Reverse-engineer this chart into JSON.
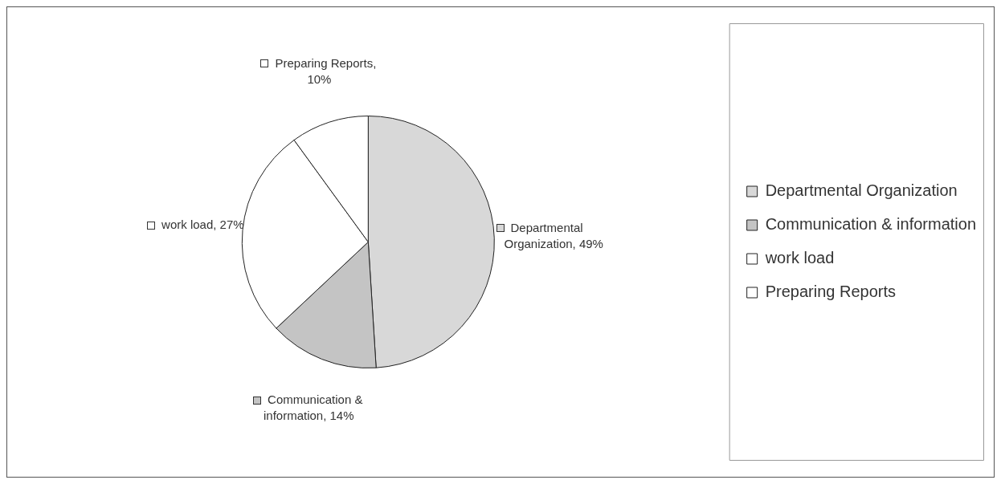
{
  "chart_data": {
    "type": "pie",
    "categories": [
      "Departmental Organization",
      "Communication & information",
      "work load",
      "Preparing Reports"
    ],
    "values": [
      49,
      14,
      27,
      10
    ],
    "colors": [
      "#d8d8d8",
      "#c4c4c4",
      "#ffffff",
      "#ffffff"
    ],
    "value_labels": [
      "Departmental Organization, 49%",
      "Communication & information, 14%",
      "work load, 27%",
      "Preparing Reports, 10%"
    ],
    "legend": "right"
  }
}
